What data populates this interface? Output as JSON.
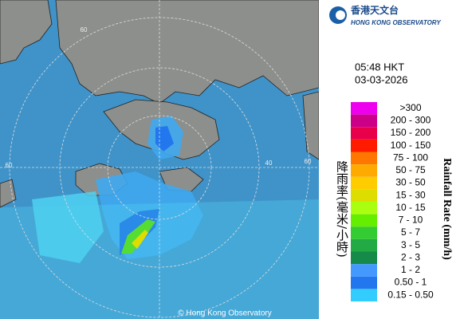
{
  "header": {
    "logo_zh": "香港天文台",
    "logo_en": "HONG KONG OBSERVATORY",
    "time": "05:48 HKT",
    "date": "03-03-2026"
  },
  "legend": {
    "title_en": "Rainfall Rate (mm/h)",
    "title_zh": "降雨率(毫米/小時)",
    "items": [
      {
        "label": ">300",
        "color": "#ee00ee"
      },
      {
        "label": "200 - 300",
        "color": "#cc0088"
      },
      {
        "label": "150 - 200",
        "color": "#e8004a"
      },
      {
        "label": "100 - 150",
        "color": "#ff1a00"
      },
      {
        "label": "75 - 100",
        "color": "#ff7700"
      },
      {
        "label": "50 - 75",
        "color": "#ffaa00"
      },
      {
        "label": "30 - 50",
        "color": "#ffcc00"
      },
      {
        "label": "15 - 30",
        "color": "#dddd00"
      },
      {
        "label": "10 - 15",
        "color": "#aaff11"
      },
      {
        "label": "7 - 10",
        "color": "#66ee00"
      },
      {
        "label": "5 - 7",
        "color": "#33cc33"
      },
      {
        "label": "3 - 5",
        "color": "#22aa44"
      },
      {
        "label": "2 - 3",
        "color": "#168a48"
      },
      {
        "label": "1 - 2",
        "color": "#4499ff"
      },
      {
        "label": "0.50 - 1",
        "color": "#2277ee"
      },
      {
        "label": "0.15 - 0.50",
        "color": "#33ccff"
      }
    ]
  },
  "map": {
    "ring_labels": [
      "60",
      "60",
      "40",
      "60"
    ],
    "copyright": "© Hong Kong Observatory"
  }
}
